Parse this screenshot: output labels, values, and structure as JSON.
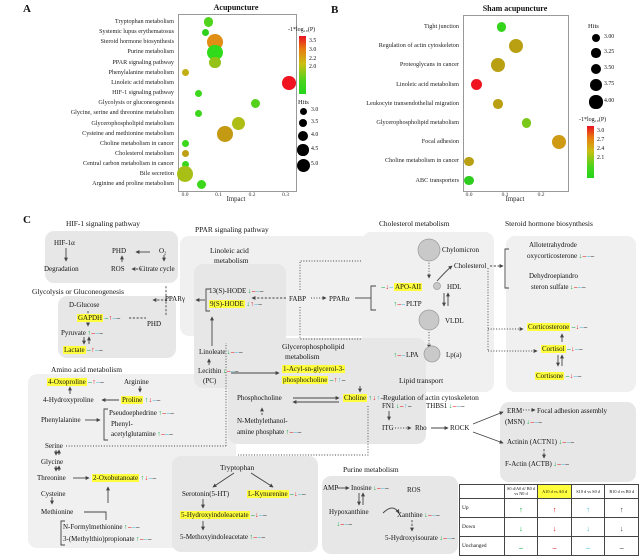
{
  "panelA": {
    "label": "A",
    "legend": {
      "color_title": "-1*log₁₀(P)",
      "color_ticks": [
        "3.5",
        "3.0",
        "2.2",
        "2.0"
      ],
      "hits_title": "Hits",
      "hits_ticks": [
        "3.0",
        "3.5",
        "4.0",
        "4.5",
        "5.0"
      ]
    }
  },
  "panelB": {
    "label": "B",
    "legend": {
      "color_title": "-1*log₁₀(P)",
      "color_ticks": [
        "3.0",
        "2.7",
        "2.4",
        "2.1"
      ],
      "hits_title": "Hits",
      "hits_ticks": [
        "3.00",
        "3.25",
        "3.50",
        "3.75",
        "4.00"
      ]
    }
  },
  "chart_data": [
    {
      "type": "bubble",
      "title": "Acupuncture",
      "xlabel": "Impact",
      "xlim": [
        0,
        0.33
      ],
      "x_ticks": [
        "0.0",
        "0.1",
        "0.2",
        "0.3"
      ],
      "tick_vals": [
        0,
        0.1,
        0.2,
        0.3
      ],
      "color_scale": "-1*log10(P): red=high(3.5) to green=low(2.0)",
      "categories": [
        "Tryptophan metabolism",
        "Systemic lupus erythematosus",
        "Steroid hormone biosynthesis",
        "Purine metabolism",
        "PPAR signaling pathway",
        "Phenylalanine metabolism",
        "Linoleic acid metabolism",
        "HIF-1 signaling pathway",
        "Glycolysis or gluconeogenesis",
        "Glycine, serine and threonine metabolism",
        "Glycerophospholipid metabolism",
        "Cysteine and methionine metabolism",
        "Choline metabolism in cancer",
        "Cholesterol metabolism",
        "Central carbon metabolism in cancer",
        "Bile secretion",
        "Arginine and proline metabolism"
      ],
      "bubbles": [
        {
          "impact": 0.07,
          "hits": 3.5,
          "color": "#4ed41c"
        },
        {
          "impact": 0.06,
          "hits": 3.0,
          "color": "#2ed01e"
        },
        {
          "impact": 0.09,
          "hits": 5.0,
          "color": "#e08e14"
        },
        {
          "impact": 0.09,
          "hits": 5.0,
          "color": "#2fdb1a"
        },
        {
          "impact": 0.09,
          "hits": 4.0,
          "color": "#94c216"
        },
        {
          "impact": 0.0,
          "hits": 3.0,
          "color": "#c2b013"
        },
        {
          "impact": 0.31,
          "hits": 4.5,
          "color": "#ef1420"
        },
        {
          "impact": 0.04,
          "hits": 3.0,
          "color": "#3cd71c"
        },
        {
          "impact": 0.21,
          "hits": 3.5,
          "color": "#55d11c"
        },
        {
          "impact": 0.04,
          "hits": 3.0,
          "color": "#3cd71c"
        },
        {
          "impact": 0.16,
          "hits": 4.5,
          "color": "#aebe14"
        },
        {
          "impact": 0.12,
          "hits": 5.0,
          "color": "#c49a12"
        },
        {
          "impact": 0.0,
          "hits": 3.0,
          "color": "#3cd71c"
        },
        {
          "impact": 0.0,
          "hits": 3.0,
          "color": "#bfa013"
        },
        {
          "impact": 0.0,
          "hits": 3.0,
          "color": "#3cd71c"
        },
        {
          "impact": 0.0,
          "hits": 5.0,
          "color": "#a8c015"
        },
        {
          "impact": 0.05,
          "hits": 3.5,
          "color": "#3cd71c"
        }
      ]
    },
    {
      "type": "bubble",
      "title": "Sham acupuncture",
      "xlabel": "Impact",
      "xlim": [
        0,
        0.28
      ],
      "x_ticks": [
        "0.0",
        "0.1",
        "0.2"
      ],
      "tick_vals": [
        0,
        0.1,
        0.2
      ],
      "color_scale": "-1*log10(P): red=high(3.0) to green=low(2.1)",
      "categories": [
        "Tight junction",
        "Regulation of actin cytoskeleton",
        "Proteoglycans in cancer",
        "Linoleic acid metabolism",
        "Leukocyte transendothelial migration",
        "Glycerophospholipid metabolism",
        "Focal adhesion",
        "Choline metabolism in cancer",
        "ABC transporters"
      ],
      "bubbles": [
        {
          "impact": 0.09,
          "hits": 3.25,
          "color": "#35d41c"
        },
        {
          "impact": 0.13,
          "hits": 4.0,
          "color": "#b9a013"
        },
        {
          "impact": 0.08,
          "hits": 4.0,
          "color": "#b9a013"
        },
        {
          "impact": 0.02,
          "hits": 3.5,
          "color": "#ef1420"
        },
        {
          "impact": 0.08,
          "hits": 3.25,
          "color": "#b9a013"
        },
        {
          "impact": 0.16,
          "hits": 3.25,
          "color": "#7ac817"
        },
        {
          "impact": 0.25,
          "hits": 4.0,
          "color": "#cf9b15"
        },
        {
          "impact": 0.0,
          "hits": 3.25,
          "color": "#b9a013"
        },
        {
          "impact": 0.0,
          "hits": 3.25,
          "color": "#2ecc1f"
        }
      ]
    }
  ],
  "panelC": {
    "label": "C",
    "titles": {
      "hif": "HIF-1 signaling pathway",
      "gly": "Glycolysis or Gluconeogenesis",
      "amino": "Amino acid metabolism",
      "ppar": "PPAR signaling pathway",
      "lin1": "Linoleic acid",
      "lin2": "metabolism",
      "gpl1": "Glycerophospholipid",
      "gpl2": "metabolism",
      "chol": "Cholesterol metabolism",
      "ster": "Steroid hormone biosynthesis",
      "lip": "Lipid transport",
      "actin": "Regulation of actin cytoskeleton",
      "trp": "Tryptophan",
      "pur": "Purine metabolism"
    },
    "nodes": {
      "hif1a": {
        "label": "HIF-1α"
      },
      "phd1": {
        "label": "PHD"
      },
      "o2": {
        "label": "O₂"
      },
      "degr": {
        "label": "Degradation"
      },
      "ros": {
        "label": "ROS"
      },
      "citr": {
        "label": "Citrate cycle"
      },
      "dglu": {
        "label": "D-Glucose"
      },
      "gapdh": {
        "label": "GAPDH",
        "ind": [
          "g-",
          "r^",
          "c-",
          "k-"
        ]
      },
      "phd2": {
        "label": "PHD"
      },
      "pyr": {
        "label": "Pyruvate",
        "ind": [
          "g^",
          "r-",
          "c-",
          "k-"
        ]
      },
      "lac": {
        "label": "Lactate",
        "ind": [
          "g-",
          "r^",
          "c-",
          "k-"
        ]
      },
      "oxo4": {
        "label": "4-Oxoproline",
        "ind": [
          "g-",
          "r^",
          "c-",
          "k-"
        ]
      },
      "arg": {
        "label": "Arginine"
      },
      "hyp4": {
        "label": "4-Hydroxyproline"
      },
      "pro": {
        "label": "Proline",
        "ind": [
          "g^",
          "rv",
          "c-",
          "k-"
        ]
      },
      "phe": {
        "label": "Phenylalanine"
      },
      "pseu": {
        "label": "Pseudoephedrine",
        "ind": [
          "g^",
          "r-",
          "c-",
          "k-"
        ]
      },
      "phg1": {
        "label": "Phenyl-"
      },
      "phg2": {
        "label": "acetylglutamine",
        "ind": [
          "g^",
          "r-",
          "c-",
          "k-"
        ]
      },
      "ser": {
        "label": "Serine"
      },
      "glyc": {
        "label": "Glycine"
      },
      "thr": {
        "label": "Threonine"
      },
      "oxob": {
        "label": "2-Oxobutanoate",
        "ind": [
          "g^",
          "rv",
          "c-",
          "k-"
        ]
      },
      "cys": {
        "label": "Cysteine"
      },
      "met": {
        "label": "Methionine"
      },
      "nfm": {
        "label": "N-Formylmethionine",
        "ind": [
          "g^",
          "r-",
          "c-",
          "k-"
        ]
      },
      "mtp": {
        "label": "3-(Methylthio)propionate",
        "ind": [
          "g^",
          "r-",
          "c-",
          "k-"
        ]
      },
      "pparg": {
        "label": "PPARγ"
      },
      "hode13": {
        "label": "13(S)-HODE",
        "ind": [
          "gv",
          "r-",
          "c-",
          "k-"
        ]
      },
      "hode9": {
        "label": "9(S)-HODE",
        "ind": [
          "gv",
          "r^",
          "c-",
          "k-"
        ]
      },
      "fabp": {
        "label": "FABP"
      },
      "ppara": {
        "label": "PPARα"
      },
      "lino": {
        "label": "Linoleate",
        "ind": [
          "gv",
          "r-",
          "c-",
          "k-"
        ]
      },
      "lec": {
        "label": "Lecithin",
        "ind": [
          "gv",
          "r-",
          "c-",
          "k-"
        ]
      },
      "lecpc": {
        "label": "(PC)"
      },
      "acyl1": {
        "label": "1-Acyl-sn-glycerol-3-"
      },
      "acyl2": {
        "label": "phosphocholine",
        "ind": [
          "g-",
          "r^",
          "c^",
          "k-"
        ]
      },
      "phoc": {
        "label": "Phosphocholine"
      },
      "cho": {
        "label": "Choline",
        "ind": [
          "g^",
          "rv",
          "c^",
          "k-"
        ]
      },
      "nme1": {
        "label": "N-Methylethanol-"
      },
      "nme2": {
        "label": "amine phosphate",
        "ind": [
          "g^",
          "r-",
          "c-",
          "k-"
        ]
      },
      "chy": {
        "label": "Chylomicron"
      },
      "chol": {
        "label": "Cholesterol"
      },
      "apo": {
        "label": "APO-AII",
        "ind": [
          "g-",
          "rv",
          "c-"
        ]
      },
      "hdl": {
        "label": "HDL"
      },
      "pltp": {
        "label": "PLTP",
        "ind": [
          "g^",
          "r-",
          "c-"
        ]
      },
      "vldl": {
        "label": "VLDL"
      },
      "lpa": {
        "label": "LPA",
        "ind": [
          "g^",
          "r-",
          "c-"
        ]
      },
      "lpa2": {
        "label": "Lp(a)"
      },
      "allo1": {
        "label": "Allotetrahydrode"
      },
      "allo2": {
        "label": "oxycorticosterone",
        "ind": [
          "gv",
          "r-",
          "c-",
          "k-"
        ]
      },
      "dhea1": {
        "label": "Dehydroepiandro"
      },
      "dhea2": {
        "label": "steron sulfate",
        "ind": [
          "gv",
          "r-",
          "c-",
          "k-"
        ]
      },
      "cort": {
        "label": "Corticosterone",
        "ind": [
          "g-",
          "rv",
          "c-",
          "k-"
        ]
      },
      "cortisol": {
        "label": "Cortisol",
        "ind": [
          "g-",
          "rv",
          "c-",
          "k-"
        ]
      },
      "cortisone": {
        "label": "Cortisone",
        "ind": [
          "g-",
          "rv",
          "c-",
          "k-"
        ]
      },
      "fn1": {
        "label": "FN1",
        "ind": [
          "gv",
          "r-",
          "c^",
          "k-"
        ]
      },
      "thbs1": {
        "label": "THBS1",
        "ind": [
          "gv",
          "r-",
          "c-",
          "k-"
        ]
      },
      "itg": {
        "label": "ITG"
      },
      "rho": {
        "label": "Rho"
      },
      "rock": {
        "label": "ROCK"
      },
      "erm": {
        "label": "ERM"
      },
      "faa": {
        "label": "Focal adhesion assembly"
      },
      "msn": {
        "label": "(MSN)",
        "ind": [
          "gv",
          "r-",
          "c-",
          "k-"
        ]
      },
      "actn": {
        "label": "Actinin (ACTN1)",
        "ind": [
          "gv",
          "r-",
          "c-",
          "k-"
        ]
      },
      "actb": {
        "label": "F-Actin (ACTB)",
        "ind": [
          "gv",
          "r-",
          "c-",
          "k-"
        ]
      },
      "srt": {
        "label": "Serotonin(5-HT)"
      },
      "kyn": {
        "label": "L-Kynurenine",
        "ind": [
          "g-",
          "rv",
          "c-",
          "k-"
        ]
      },
      "hia": {
        "label": "5-Hydroxyindoleacetate",
        "ind": [
          "g-",
          "rv",
          "c-",
          "k-"
        ]
      },
      "mia": {
        "label": "5-Methoxyindoleacetate",
        "ind": [
          "g^",
          "r-",
          "c-",
          "k-"
        ]
      },
      "amp": {
        "label": "AMP"
      },
      "ino": {
        "label": "Inosine",
        "ind": [
          "gv",
          "r-",
          "c-",
          "k-"
        ]
      },
      "hyx": {
        "label": "Hypoxanthine"
      },
      "hyxind": {
        "label": "",
        "ind": [
          "gv",
          "r-",
          "c-",
          "k-"
        ]
      },
      "rosp": {
        "label": "ROS"
      },
      "xan": {
        "label": "Xanthine",
        "ind": [
          "gv",
          "r-",
          "c-",
          "k-"
        ]
      },
      "hyi": {
        "label": "5-Hydroxyisourate",
        "ind": [
          "gv",
          "r-",
          "c-",
          "k-"
        ]
      }
    },
    "table": {
      "headers": [
        "S0 d/A0 d/ B0 d vs N0 d",
        "A10 d vs A0 d",
        "S10 d vs S0 d",
        "B10 d vs B0 d"
      ],
      "highlight_col": 1,
      "rows": [
        {
          "label": "Up",
          "cells": [
            "g^",
            "r^",
            "c^",
            "k^"
          ]
        },
        {
          "label": "Down",
          "cells": [
            "gv",
            "rv",
            "cv",
            "kv"
          ]
        },
        {
          "label": "Unchanged",
          "cells": [
            "g-",
            "r-",
            "c-",
            "k-"
          ]
        }
      ]
    }
  }
}
